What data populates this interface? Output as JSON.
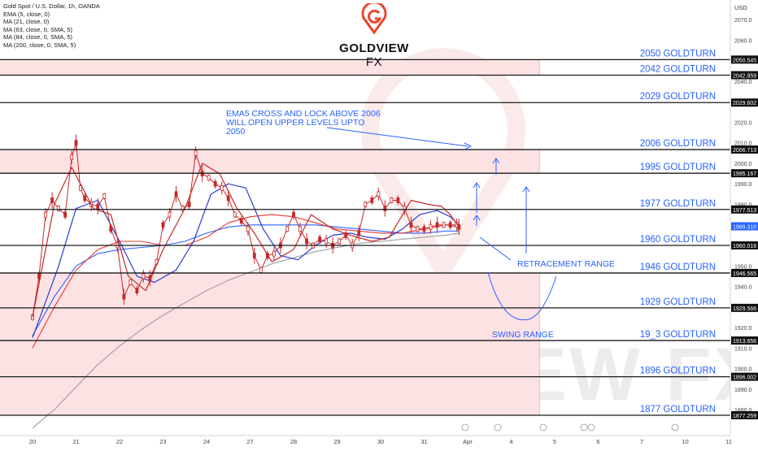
{
  "header": {
    "instrument": "Gold Spot / U.S. Dollar, 1h, OANDA",
    "indicators": [
      "EMA (5, close, 0)",
      "MA (21, close, 0)",
      "MA (63, close, 0, SMA, 5)",
      "MA (84, close, 0, SMA, 5)",
      "MA (200, close, 0, SMA, 5)"
    ],
    "currency": "USD"
  },
  "logo": {
    "brand": "GOLDVIEW",
    "suffix": "FX",
    "watermark": "GOLDVIEW FX",
    "accent": "#e8452c"
  },
  "colors": {
    "up": "#26a69a",
    "down": "#ef5350",
    "candle": "#c62828",
    "ema5": "#c62828",
    "ma21": "#2a3bd6",
    "ma63": "#e53935",
    "ma84": "#2962ff",
    "ma200": "#a8a8a8",
    "zone": "#fde2e4",
    "annotation": "#2962ff",
    "level": "#1a1a1a"
  },
  "chart_data": {
    "type": "line",
    "title": "Gold Spot / U.S. Dollar, 1h, OANDA",
    "xlabel": "",
    "ylabel": "USD",
    "ylim": [
      1872.5,
      2078
    ],
    "x_ticks": [
      "20",
      "21",
      "22",
      "23",
      "24",
      "27",
      "28",
      "29",
      "30",
      "31",
      "Apr",
      "4",
      "5",
      "6",
      "7",
      "10",
      "11"
    ],
    "y_ticks": [
      1880,
      1890,
      1900,
      1910,
      1920,
      1930,
      1940,
      1950,
      1960,
      1970,
      1980,
      1990,
      2000,
      2010,
      2020,
      2030,
      2040,
      2050,
      2060,
      2070
    ],
    "level_lines": [
      {
        "label": "2050 GOLDTURN",
        "price": 2050.545
      },
      {
        "label": "2042 GOLDTURN",
        "price": 2042.959
      },
      {
        "label": "2029 GOLDTURN",
        "price": 2029.602
      },
      {
        "label": "2006 GOLDTURN",
        "price": 2006.713
      },
      {
        "label": "1995 GOLDTURN",
        "price": 1995.167
      },
      {
        "label": "1977 GOLDTURN",
        "price": 1977.513
      },
      {
        "label": "1960 GOLDTURN",
        "price": 1960.016
      },
      {
        "label": "1946 GOLDTURN",
        "price": 1946.565
      },
      {
        "label": "1929 GOLDTURN",
        "price": 1929.566
      },
      {
        "label": "19_3 GOLDTURN",
        "price": 1913.656
      },
      {
        "label": "1896 GOLDTURN",
        "price": 1896.002
      },
      {
        "label": "1877 GOLDTURN",
        "price": 1877.259
      }
    ],
    "price_badges": [
      "2050.545",
      "2042.959",
      "2029.602",
      "2006.713",
      "1995.167",
      "1977.513",
      "1969.310",
      "1960.016",
      "1946.565",
      "1929.566",
      "1913.656",
      "1896.002",
      "1877.259"
    ],
    "current_price": 1969.31,
    "zones": [
      {
        "from": 2042.959,
        "to": 2050.545,
        "x_end": "Apr 4.2"
      },
      {
        "from": 1995.167,
        "to": 2006.713,
        "x_end": "Apr 4.2"
      },
      {
        "from": 1877.259,
        "to": 1946.565,
        "x_end": "Apr 4.2"
      }
    ],
    "annotations": [
      "EMA5 CROSS AND LOCK ABOVE 2006",
      "WILL OPEN UPPER LEVELS UPTO",
      "2050",
      "RETRACEMENT RANGE",
      "SWING RANGE"
    ],
    "series": [
      {
        "name": "EMA (5, close, 0)",
        "x": [
          0,
          0.5,
          0.9,
          1.4,
          1.8,
          2.2,
          2.6,
          3.0,
          3.5,
          3.9,
          4.3,
          4.7,
          5.1,
          5.5,
          6.0,
          6.4,
          6.9,
          7.3,
          7.8,
          8.2,
          8.7,
          9.1,
          9.4,
          9.6,
          9.8
        ],
        "y": [
          1925,
          1980,
          1998,
          1978,
          1975,
          1945,
          1938,
          1958,
          1978,
          2000,
          1995,
          1978,
          1966,
          1952,
          1958,
          1975,
          1968,
          1965,
          1962,
          1964,
          1982,
          1980,
          1979,
          1975,
          1969
        ]
      },
      {
        "name": "MA (21, close, 0)",
        "x": [
          0,
          0.6,
          1.0,
          1.5,
          2.0,
          2.4,
          2.8,
          3.3,
          3.7,
          4.1,
          4.5,
          4.9,
          5.3,
          5.7,
          6.1,
          6.5,
          6.9,
          7.3,
          7.7,
          8.1,
          8.5,
          8.9,
          9.3,
          9.6,
          9.8
        ],
        "y": [
          1915,
          1950,
          1978,
          1982,
          1962,
          1945,
          1942,
          1948,
          1962,
          1985,
          1990,
          1988,
          1968,
          1955,
          1953,
          1960,
          1965,
          1966,
          1964,
          1963,
          1968,
          1975,
          1977,
          1974,
          1970
        ]
      },
      {
        "name": "MA (63, close, 0, SMA, 5)",
        "x": [
          0,
          0.5,
          1.0,
          1.5,
          2.0,
          2.5,
          3.0,
          3.5,
          4.0,
          4.5,
          5.0,
          5.5,
          6.0,
          6.5,
          7.0,
          7.5,
          8.0,
          8.5,
          9.0,
          9.5,
          9.8
        ],
        "y": [
          1910,
          1930,
          1948,
          1958,
          1962,
          1962,
          1960,
          1960,
          1964,
          1971,
          1974,
          1975,
          1974,
          1971,
          1968,
          1967,
          1966,
          1966,
          1968,
          1970,
          1969
        ]
      },
      {
        "name": "MA (84, close, 0, SMA, 5)",
        "x": [
          0,
          0.5,
          1.0,
          1.5,
          2.0,
          2.5,
          3.0,
          3.5,
          4.0,
          4.5,
          5.0,
          5.5,
          6.0,
          6.5,
          7.0,
          7.5,
          8.0,
          8.5,
          9.0,
          9.5,
          9.8
        ],
        "y": [
          1916,
          1935,
          1950,
          1956,
          1958,
          1959,
          1960,
          1962,
          1966,
          1969,
          1970,
          1970,
          1970,
          1970,
          1969,
          1968,
          1967,
          1966,
          1966,
          1967,
          1967
        ]
      },
      {
        "name": "MA (200, close, 0, SMA, 5)",
        "x": [
          0,
          0.5,
          1.0,
          1.5,
          2.0,
          2.5,
          3.0,
          3.5,
          4.0,
          4.5,
          5.0,
          5.5,
          6.0,
          6.5,
          7.0,
          7.5,
          8.0,
          8.5,
          9.0,
          9.5,
          9.8
        ],
        "y": [
          1871,
          1880,
          1891,
          1902,
          1911,
          1919,
          1926,
          1932,
          1938,
          1943,
          1947,
          1951,
          1954,
          1957,
          1959,
          1961,
          1962,
          1963,
          1964,
          1965,
          1966
        ]
      },
      {
        "name": "Price",
        "x": [
          0,
          0.15,
          0.3,
          0.45,
          0.6,
          0.75,
          0.9,
          1.0,
          1.1,
          1.2,
          1.35,
          1.5,
          1.65,
          1.8,
          1.95,
          2.1,
          2.25,
          2.4,
          2.55,
          2.7,
          2.85,
          3.0,
          3.15,
          3.3,
          3.45,
          3.6,
          3.75,
          3.9,
          4.05,
          4.2,
          4.35,
          4.5,
          4.65,
          4.8,
          4.95,
          5.1,
          5.25,
          5.4,
          5.55,
          5.7,
          5.85,
          6.0,
          6.15,
          6.3,
          6.45,
          6.6,
          6.75,
          6.9,
          7.05,
          7.2,
          7.35,
          7.5,
          7.65,
          7.8,
          7.95,
          8.1,
          8.25,
          8.4,
          8.55,
          8.7,
          8.85,
          9.0,
          9.15,
          9.3,
          9.45,
          9.6,
          9.75,
          9.8
        ],
        "y": [
          1925,
          1945,
          1975,
          1982,
          1978,
          1975,
          2003,
          2010,
          1988,
          1983,
          1980,
          1979,
          1984,
          1968,
          1960,
          1935,
          1942,
          1938,
          1945,
          1944,
          1952,
          1970,
          1975,
          1985,
          1978,
          1980,
          2005,
          1995,
          1993,
          1990,
          1988,
          1983,
          1975,
          1972,
          1968,
          1955,
          1948,
          1955,
          1956,
          1960,
          1968,
          1975,
          1968,
          1962,
          1960,
          1963,
          1962,
          1960,
          1962,
          1965,
          1960,
          1966,
          1980,
          1982,
          1985,
          1978,
          1982,
          1982,
          1978,
          1970,
          1968,
          1968,
          1969,
          1970,
          1970,
          1970,
          1970,
          1969
        ]
      }
    ]
  }
}
